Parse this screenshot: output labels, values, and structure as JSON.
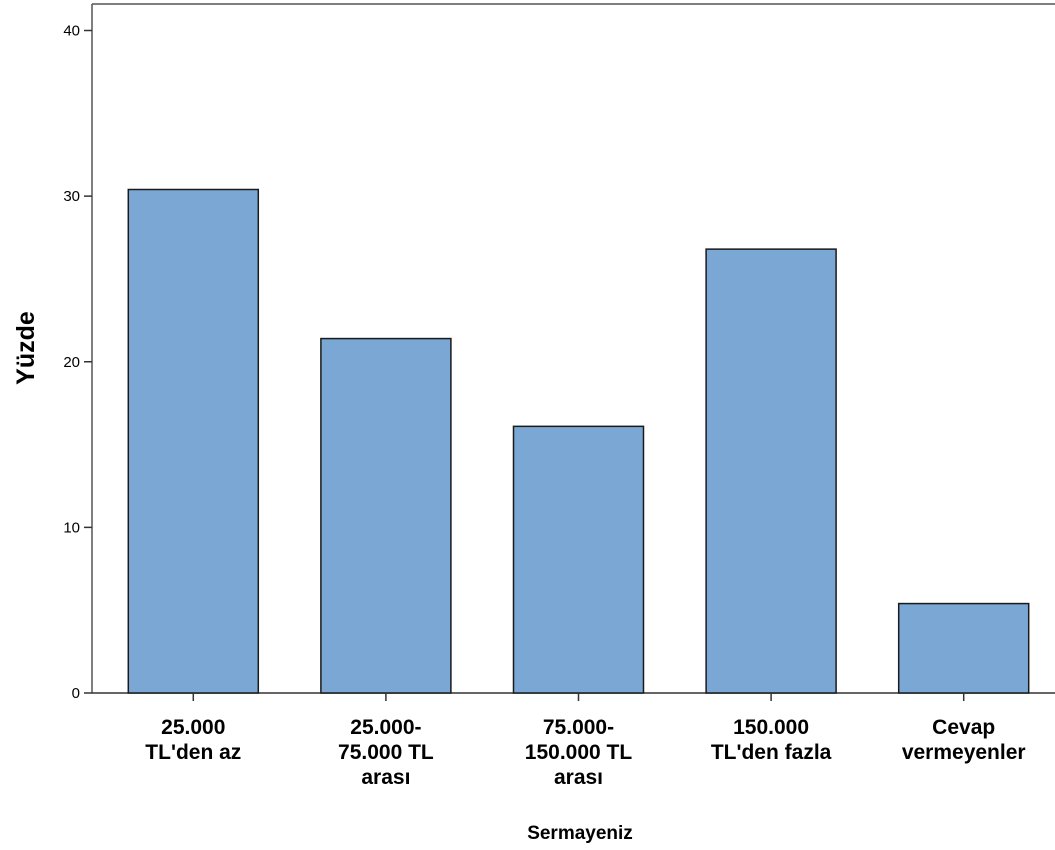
{
  "chart_data": {
    "type": "bar",
    "title": "",
    "xlabel": "Sermayeniz",
    "ylabel": "Yüzde",
    "categories": [
      [
        "25.000",
        "TL'den az"
      ],
      [
        "25.000-",
        "75.000 TL",
        "arası"
      ],
      [
        "75.000-",
        "150.000 TL",
        "arası"
      ],
      [
        "150.000",
        "TL'den fazla"
      ],
      [
        "Cevap",
        "vermeyenler"
      ]
    ],
    "values": [
      30.4,
      21.4,
      16.1,
      26.8,
      5.4
    ],
    "ylim": [
      0,
      40
    ],
    "yticks": [
      0,
      10,
      20,
      30,
      40
    ],
    "grid": false,
    "bar_color": "#7ba7d4",
    "bar_edge_color": "#1a1a1a"
  }
}
